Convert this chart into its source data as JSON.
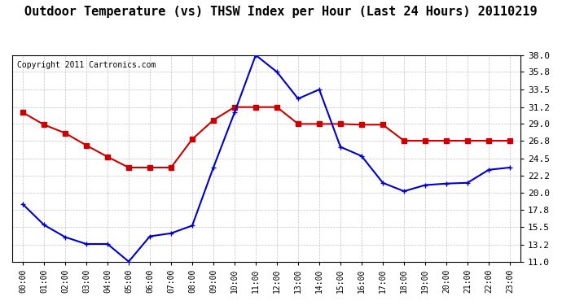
{
  "title": "Outdoor Temperature (vs) THSW Index per Hour (Last 24 Hours) 20110219",
  "copyright": "Copyright 2011 Cartronics.com",
  "hours": [
    "00:00",
    "01:00",
    "02:00",
    "03:00",
    "04:00",
    "05:00",
    "06:00",
    "07:00",
    "08:00",
    "09:00",
    "10:00",
    "11:00",
    "12:00",
    "13:00",
    "14:00",
    "15:00",
    "16:00",
    "17:00",
    "18:00",
    "19:00",
    "20:00",
    "21:00",
    "22:00",
    "23:00"
  ],
  "red_data": [
    30.5,
    28.9,
    27.8,
    26.2,
    24.7,
    23.3,
    23.3,
    23.3,
    27.0,
    29.5,
    31.2,
    31.2,
    31.2,
    29.0,
    29.0,
    29.0,
    28.9,
    28.9,
    26.8,
    26.8,
    26.8,
    26.8,
    26.8,
    26.8
  ],
  "blue_data": [
    18.5,
    15.8,
    14.2,
    13.3,
    13.3,
    11.0,
    14.3,
    14.7,
    15.7,
    23.3,
    30.5,
    38.0,
    35.8,
    32.3,
    33.5,
    26.0,
    24.8,
    21.3,
    20.2,
    21.0,
    21.2,
    21.3,
    23.0,
    23.3
  ],
  "ylim": [
    11.0,
    38.0
  ],
  "yticks": [
    11.0,
    13.2,
    15.5,
    17.8,
    20.0,
    22.2,
    24.5,
    26.8,
    29.0,
    31.2,
    33.5,
    35.8,
    38.0
  ],
  "red_color": "#cc0000",
  "blue_color": "#0000cc",
  "bg_color": "#ffffff",
  "plot_bg": "#ffffff",
  "grid_color": "#aaaaaa",
  "title_fontsize": 11,
  "copyright_fontsize": 7
}
